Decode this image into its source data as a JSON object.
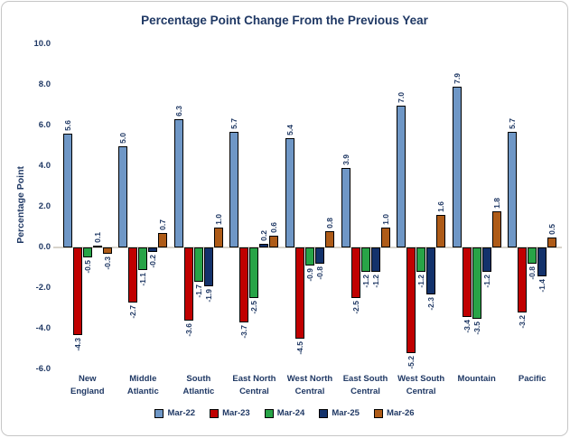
{
  "chart_data": {
    "type": "bar",
    "title": "Percentage Point Change From the Previous Year",
    "xlabel": "",
    "ylabel": "Percentage Point",
    "ylim": [
      -6,
      10
    ],
    "ytick_step": 2,
    "yticks": [
      "10.0",
      "8.0",
      "6.0",
      "4.0",
      "2.0",
      "0.0",
      "-2.0",
      "-4.0",
      "-6.0"
    ],
    "grid": false,
    "legend_position": "bottom",
    "value_labels": "rotated-vertical, one decimal",
    "text_color": "#1F3864",
    "axis_line_color": "#D8D4CB",
    "bar_border_color": "#000000",
    "categories": [
      {
        "label": "New England",
        "lines": [
          "New",
          "England"
        ]
      },
      {
        "label": "Middle Atlantic",
        "lines": [
          "Middle",
          "Atlantic"
        ]
      },
      {
        "label": "South Atlantic",
        "lines": [
          "South",
          "Atlantic"
        ]
      },
      {
        "label": "East North Central",
        "lines": [
          "East North",
          "Central"
        ]
      },
      {
        "label": "West North Central",
        "lines": [
          "West North",
          "Central"
        ]
      },
      {
        "label": "East South Central",
        "lines": [
          "East South",
          "Central"
        ]
      },
      {
        "label": "West South Central",
        "lines": [
          "West South",
          "Central"
        ]
      },
      {
        "label": "Mountain",
        "lines": [
          "Mountain"
        ]
      },
      {
        "label": "Pacific",
        "lines": [
          "Pacific"
        ]
      }
    ],
    "series": [
      {
        "name": "Mar-22",
        "color": "#6F97C6",
        "values": [
          5.6,
          5.0,
          6.3,
          5.7,
          5.4,
          3.9,
          7.0,
          7.9,
          5.7
        ]
      },
      {
        "name": "Mar-23",
        "color": "#C00000",
        "values": [
          -4.3,
          -2.7,
          -3.6,
          -3.7,
          -4.5,
          -2.5,
          -5.2,
          -3.4,
          -3.2
        ]
      },
      {
        "name": "Mar-24",
        "color": "#28A447",
        "values": [
          -0.5,
          -1.1,
          -1.7,
          -2.5,
          -0.9,
          -1.2,
          -1.2,
          -3.5,
          -0.8
        ]
      },
      {
        "name": "Mar-25",
        "color": "#13326B",
        "values": [
          0.1,
          -0.2,
          -1.9,
          0.2,
          -0.8,
          -1.2,
          -2.3,
          -1.2,
          -1.4
        ]
      },
      {
        "name": "Mar-26",
        "color": "#AE5B17",
        "values": [
          -0.3,
          0.7,
          1.0,
          0.6,
          0.8,
          1.0,
          1.6,
          1.8,
          0.5
        ]
      }
    ]
  }
}
